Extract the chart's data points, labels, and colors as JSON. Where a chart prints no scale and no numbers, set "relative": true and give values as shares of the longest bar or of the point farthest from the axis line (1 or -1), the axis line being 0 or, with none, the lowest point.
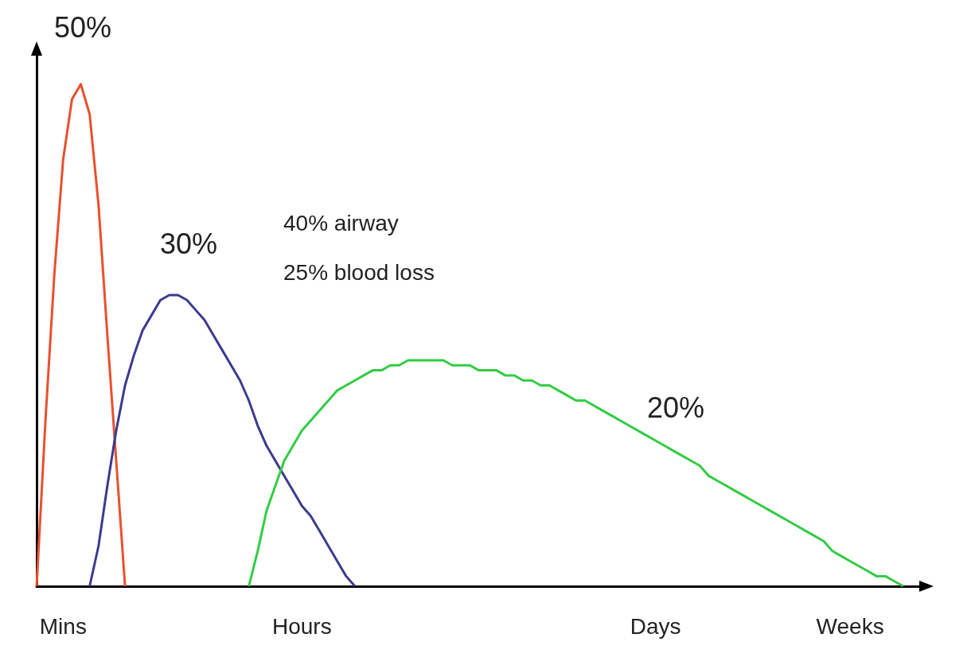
{
  "chart_data": {
    "type": "line",
    "relative": true,
    "marker": "none",
    "grid": false,
    "categories": [
      null,
      null,
      null,
      "Mins",
      null,
      null,
      null,
      null,
      null,
      null,
      null,
      null,
      null,
      null,
      null,
      null,
      null,
      null,
      null,
      null,
      null,
      null,
      null,
      null,
      null,
      null,
      null,
      null,
      null,
      null,
      "Hours",
      null,
      null,
      null,
      null,
      null,
      null,
      null,
      null,
      null,
      null,
      null,
      null,
      null,
      null,
      null,
      null,
      null,
      null,
      null,
      null,
      null,
      null,
      null,
      null,
      null,
      null,
      null,
      null,
      null,
      null,
      null,
      null,
      null,
      null,
      null,
      null,
      null,
      null,
      null,
      "Days",
      null,
      null,
      null,
      null,
      null,
      null,
      null,
      null,
      null,
      null,
      null,
      null,
      null,
      null,
      null,
      null,
      null,
      null,
      null,
      null,
      null,
      "Weeks",
      null,
      null,
      null,
      null,
      null,
      null,
      null,
      null
    ],
    "series": [
      {
        "color": "#e8502f",
        "values": [
          0,
          0.33,
          0.62,
          0.85,
          0.97,
          1,
          0.94,
          0.76,
          0.5,
          0.25,
          0,
          null,
          null,
          null,
          null,
          null,
          null,
          null,
          null,
          null,
          null,
          null,
          null,
          null,
          null,
          null,
          null,
          null,
          null,
          null,
          null,
          null,
          null,
          null,
          null,
          null,
          null,
          null,
          null,
          null,
          null,
          null,
          null,
          null,
          null,
          null,
          null,
          null,
          null,
          null,
          null,
          null,
          null,
          null,
          null,
          null,
          null,
          null,
          null,
          null,
          null,
          null,
          null,
          null,
          null,
          null,
          null,
          null,
          null,
          null,
          null,
          null,
          null,
          null,
          null,
          null,
          null,
          null,
          null,
          null,
          null,
          null,
          null,
          null,
          null,
          null,
          null,
          null,
          null,
          null,
          null,
          null,
          null,
          null,
          null,
          null,
          null,
          null,
          null,
          null,
          null
        ]
      },
      {
        "color": "#3b3b8f",
        "values": [
          null,
          null,
          null,
          null,
          null,
          null,
          0,
          0.08,
          0.2,
          0.31,
          0.4,
          0.46,
          0.51,
          0.54,
          0.57,
          0.58,
          0.58,
          0.57,
          0.55,
          0.53,
          0.5,
          0.47,
          0.44,
          0.41,
          0.37,
          0.32,
          0.28,
          0.25,
          0.22,
          0.19,
          0.16,
          0.14,
          0.11,
          0.08,
          0.05,
          0.02,
          0,
          null,
          null,
          null,
          null,
          null,
          null,
          null,
          null,
          null,
          null,
          null,
          null,
          null,
          null,
          null,
          null,
          null,
          null,
          null,
          null,
          null,
          null,
          null,
          null,
          null,
          null,
          null,
          null,
          null,
          null,
          null,
          null,
          null,
          null,
          null,
          null,
          null,
          null,
          null,
          null,
          null,
          null,
          null,
          null,
          null,
          null,
          null,
          null,
          null,
          null,
          null,
          null,
          null,
          null,
          null,
          null,
          null,
          null,
          null,
          null,
          null,
          null,
          null,
          null
        ]
      },
      {
        "color": "#33cc44",
        "values": [
          null,
          null,
          null,
          null,
          null,
          null,
          null,
          null,
          null,
          null,
          null,
          null,
          null,
          null,
          null,
          null,
          null,
          null,
          null,
          null,
          null,
          null,
          null,
          null,
          0,
          0.07,
          0.15,
          0.2,
          0.25,
          0.28,
          0.31,
          0.33,
          0.35,
          0.37,
          0.39,
          0.4,
          0.41,
          0.42,
          0.43,
          0.43,
          0.44,
          0.44,
          0.45,
          0.45,
          0.45,
          0.45,
          0.45,
          0.44,
          0.44,
          0.44,
          0.43,
          0.43,
          0.43,
          0.42,
          0.42,
          0.41,
          0.41,
          0.4,
          0.4,
          0.39,
          0.38,
          0.37,
          0.37,
          0.36,
          0.35,
          0.34,
          0.33,
          0.32,
          0.31,
          0.3,
          0.29,
          0.28,
          0.27,
          0.26,
          0.25,
          0.24,
          0.22,
          0.21,
          0.2,
          0.19,
          0.18,
          0.17,
          0.16,
          0.15,
          0.14,
          0.13,
          0.12,
          0.11,
          0.1,
          0.09,
          0.07,
          0.06,
          0.05,
          0.04,
          0.03,
          0.02,
          0.02,
          0.01,
          0,
          null,
          null
        ]
      }
    ],
    "annotations": [
      "50%",
      "30%",
      "20%",
      "40% airway",
      "25% blood loss"
    ]
  }
}
